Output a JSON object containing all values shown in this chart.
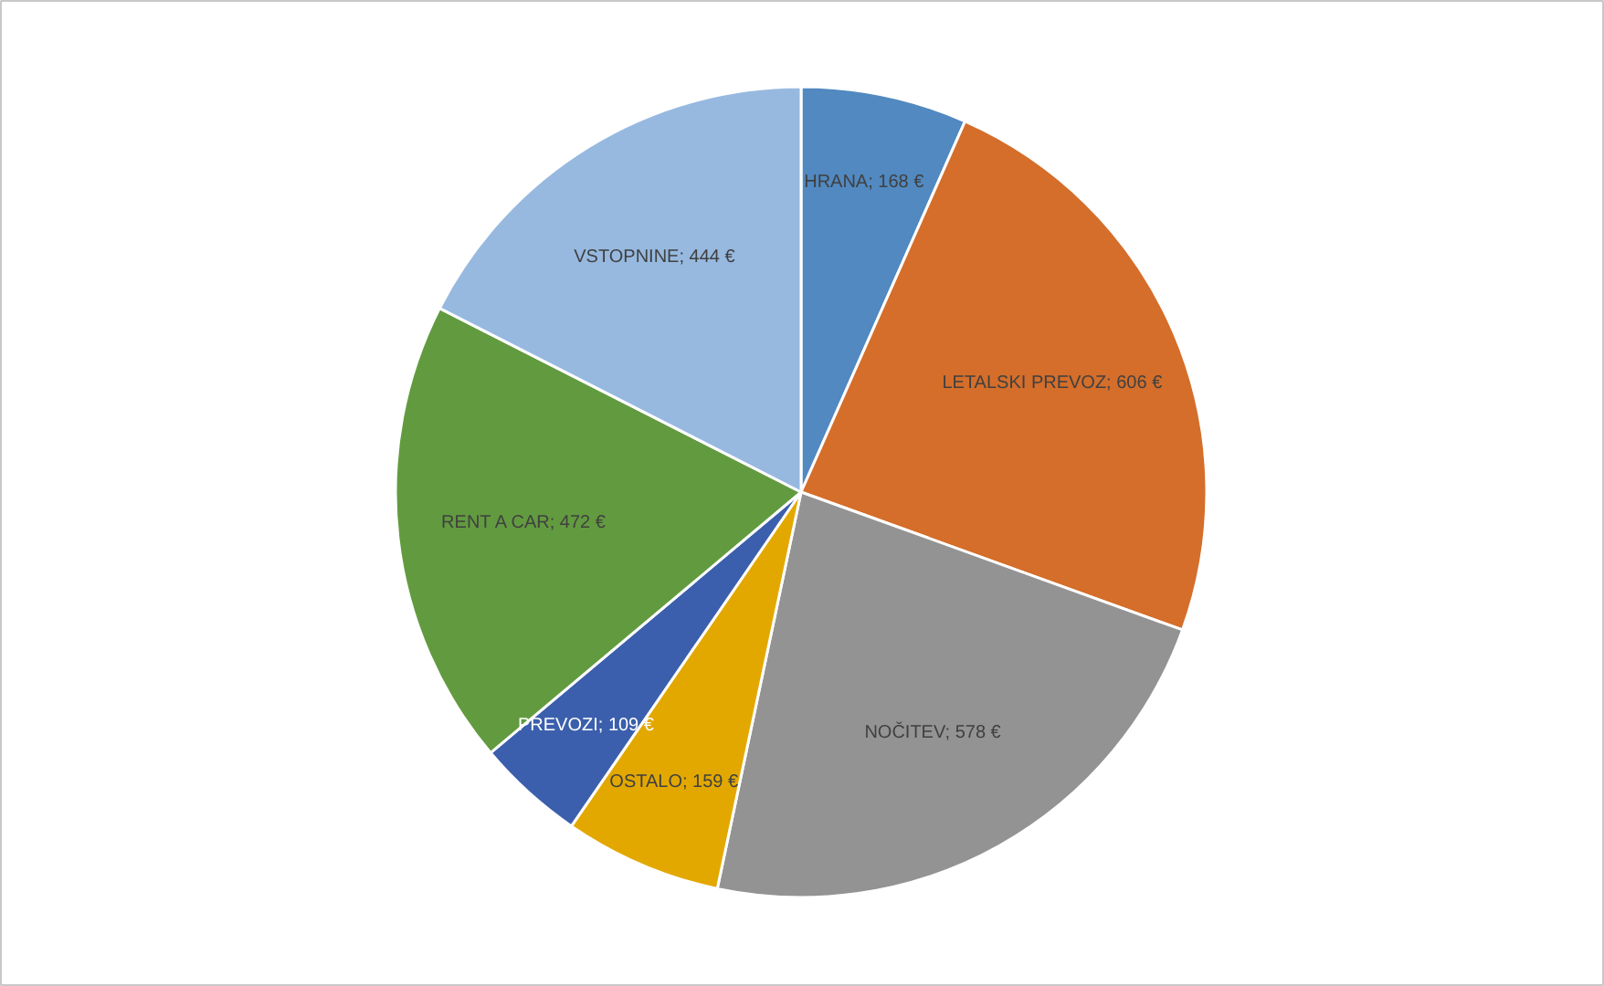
{
  "chart_data": {
    "type": "pie",
    "categories": [
      "HRANA",
      "LETALSKI PREVOZ",
      "NOČITEV",
      "OSTALO",
      "PREVOZI",
      "RENT A CAR",
      "VSTOPNINE"
    ],
    "values": [
      168,
      606,
      578,
      159,
      109,
      472,
      444
    ],
    "value_labels": [
      "168 €",
      "606 €",
      "578 €",
      "159 €",
      "109 €",
      "472 €",
      "444 €"
    ],
    "colors": [
      "#5189c0",
      "#d46e2a",
      "#939393",
      "#e3a800",
      "#3b5fad",
      "#629b3f",
      "#97b9e0"
    ],
    "legend": false
  }
}
